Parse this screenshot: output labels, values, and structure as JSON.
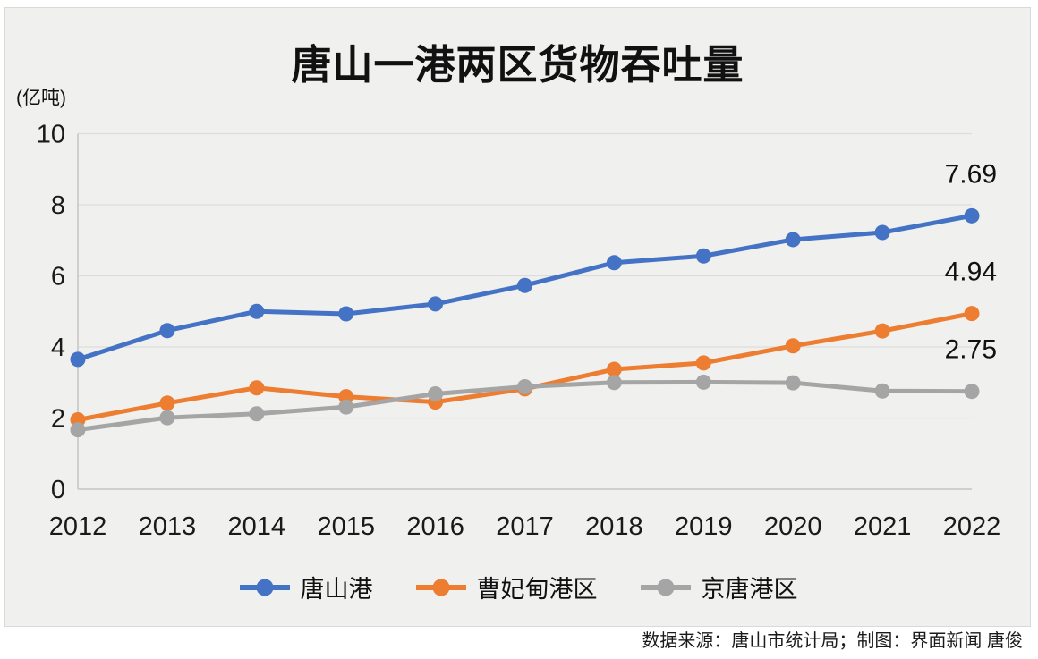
{
  "chart_data": {
    "type": "line",
    "title": "唐山一港两区货物吞吐量",
    "unit_label": "(亿吨)",
    "xlabel": "",
    "ylabel": "亿吨",
    "x": [
      2012,
      2013,
      2014,
      2015,
      2016,
      2017,
      2018,
      2019,
      2020,
      2021,
      2022
    ],
    "series": [
      {
        "name": "唐山港",
        "color": "#4472C4",
        "values": [
          3.65,
          4.46,
          5.0,
          4.93,
          5.21,
          5.73,
          6.37,
          6.56,
          7.02,
          7.22,
          7.69
        ],
        "end_label": "7.69"
      },
      {
        "name": "曹妃甸港区",
        "color": "#ED7D31",
        "values": [
          1.95,
          2.42,
          2.85,
          2.6,
          2.45,
          2.82,
          3.37,
          3.55,
          4.03,
          4.45,
          4.94
        ],
        "end_label": "4.94"
      },
      {
        "name": "京唐港区",
        "color": "#A5A5A5",
        "values": [
          1.67,
          2.01,
          2.12,
          2.31,
          2.68,
          2.88,
          3.0,
          3.01,
          2.99,
          2.76,
          2.75
        ],
        "end_label": "2.75"
      }
    ],
    "ylim": [
      0,
      10
    ],
    "yticks": [
      0,
      2,
      4,
      6,
      8,
      10
    ],
    "grid": true,
    "legend_position": "bottom",
    "gridline_color": "#dcdcdc",
    "axis_color": "#c4c4c4",
    "text_color": "#1a1a1a",
    "card_background": "#f0f0ef"
  },
  "footer": {
    "credit": "数据来源：唐山市统计局；制图：界面新闻 唐俊"
  }
}
